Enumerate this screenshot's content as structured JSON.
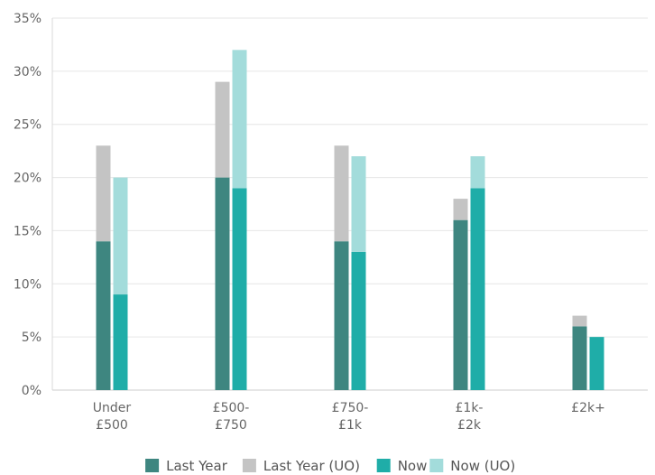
{
  "chart_data": {
    "type": "bar",
    "categories": [
      [
        "Under",
        "£500"
      ],
      [
        "£500-",
        "£750"
      ],
      [
        "£750-",
        "£1k"
      ],
      [
        "£1k-",
        "£2k"
      ],
      [
        "£2k+"
      ]
    ],
    "yticks": [
      "0%",
      "5%",
      "10%",
      "15%",
      "20%",
      "25%",
      "30%",
      "35%"
    ],
    "ylim": [
      0,
      35
    ],
    "grid": true,
    "legend_position": "bottom",
    "stacks": [
      {
        "group": "Last Year",
        "segments": [
          {
            "name": "Last Year",
            "color": "#3e8680",
            "values": [
              14,
              20,
              14,
              16,
              6
            ]
          },
          {
            "name": "Last Year (UO)",
            "color": "#c4c4c4",
            "values": [
              9,
              9,
              9,
              2,
              1
            ]
          }
        ]
      },
      {
        "group": "Now",
        "segments": [
          {
            "name": "Now",
            "color": "#1fada8",
            "values": [
              9,
              19,
              13,
              19,
              5
            ]
          },
          {
            "name": "Now (UO)",
            "color": "#a3dcdb",
            "values": [
              11,
              13,
              9,
              3,
              0
            ]
          }
        ]
      }
    ],
    "legend": [
      {
        "label": "Last Year",
        "color": "#3e8680"
      },
      {
        "label": "Last Year (UO)",
        "color": "#c4c4c4"
      },
      {
        "label": "Now",
        "color": "#1fada8"
      },
      {
        "label": "Now (UO)",
        "color": "#a3dcdb"
      }
    ]
  }
}
